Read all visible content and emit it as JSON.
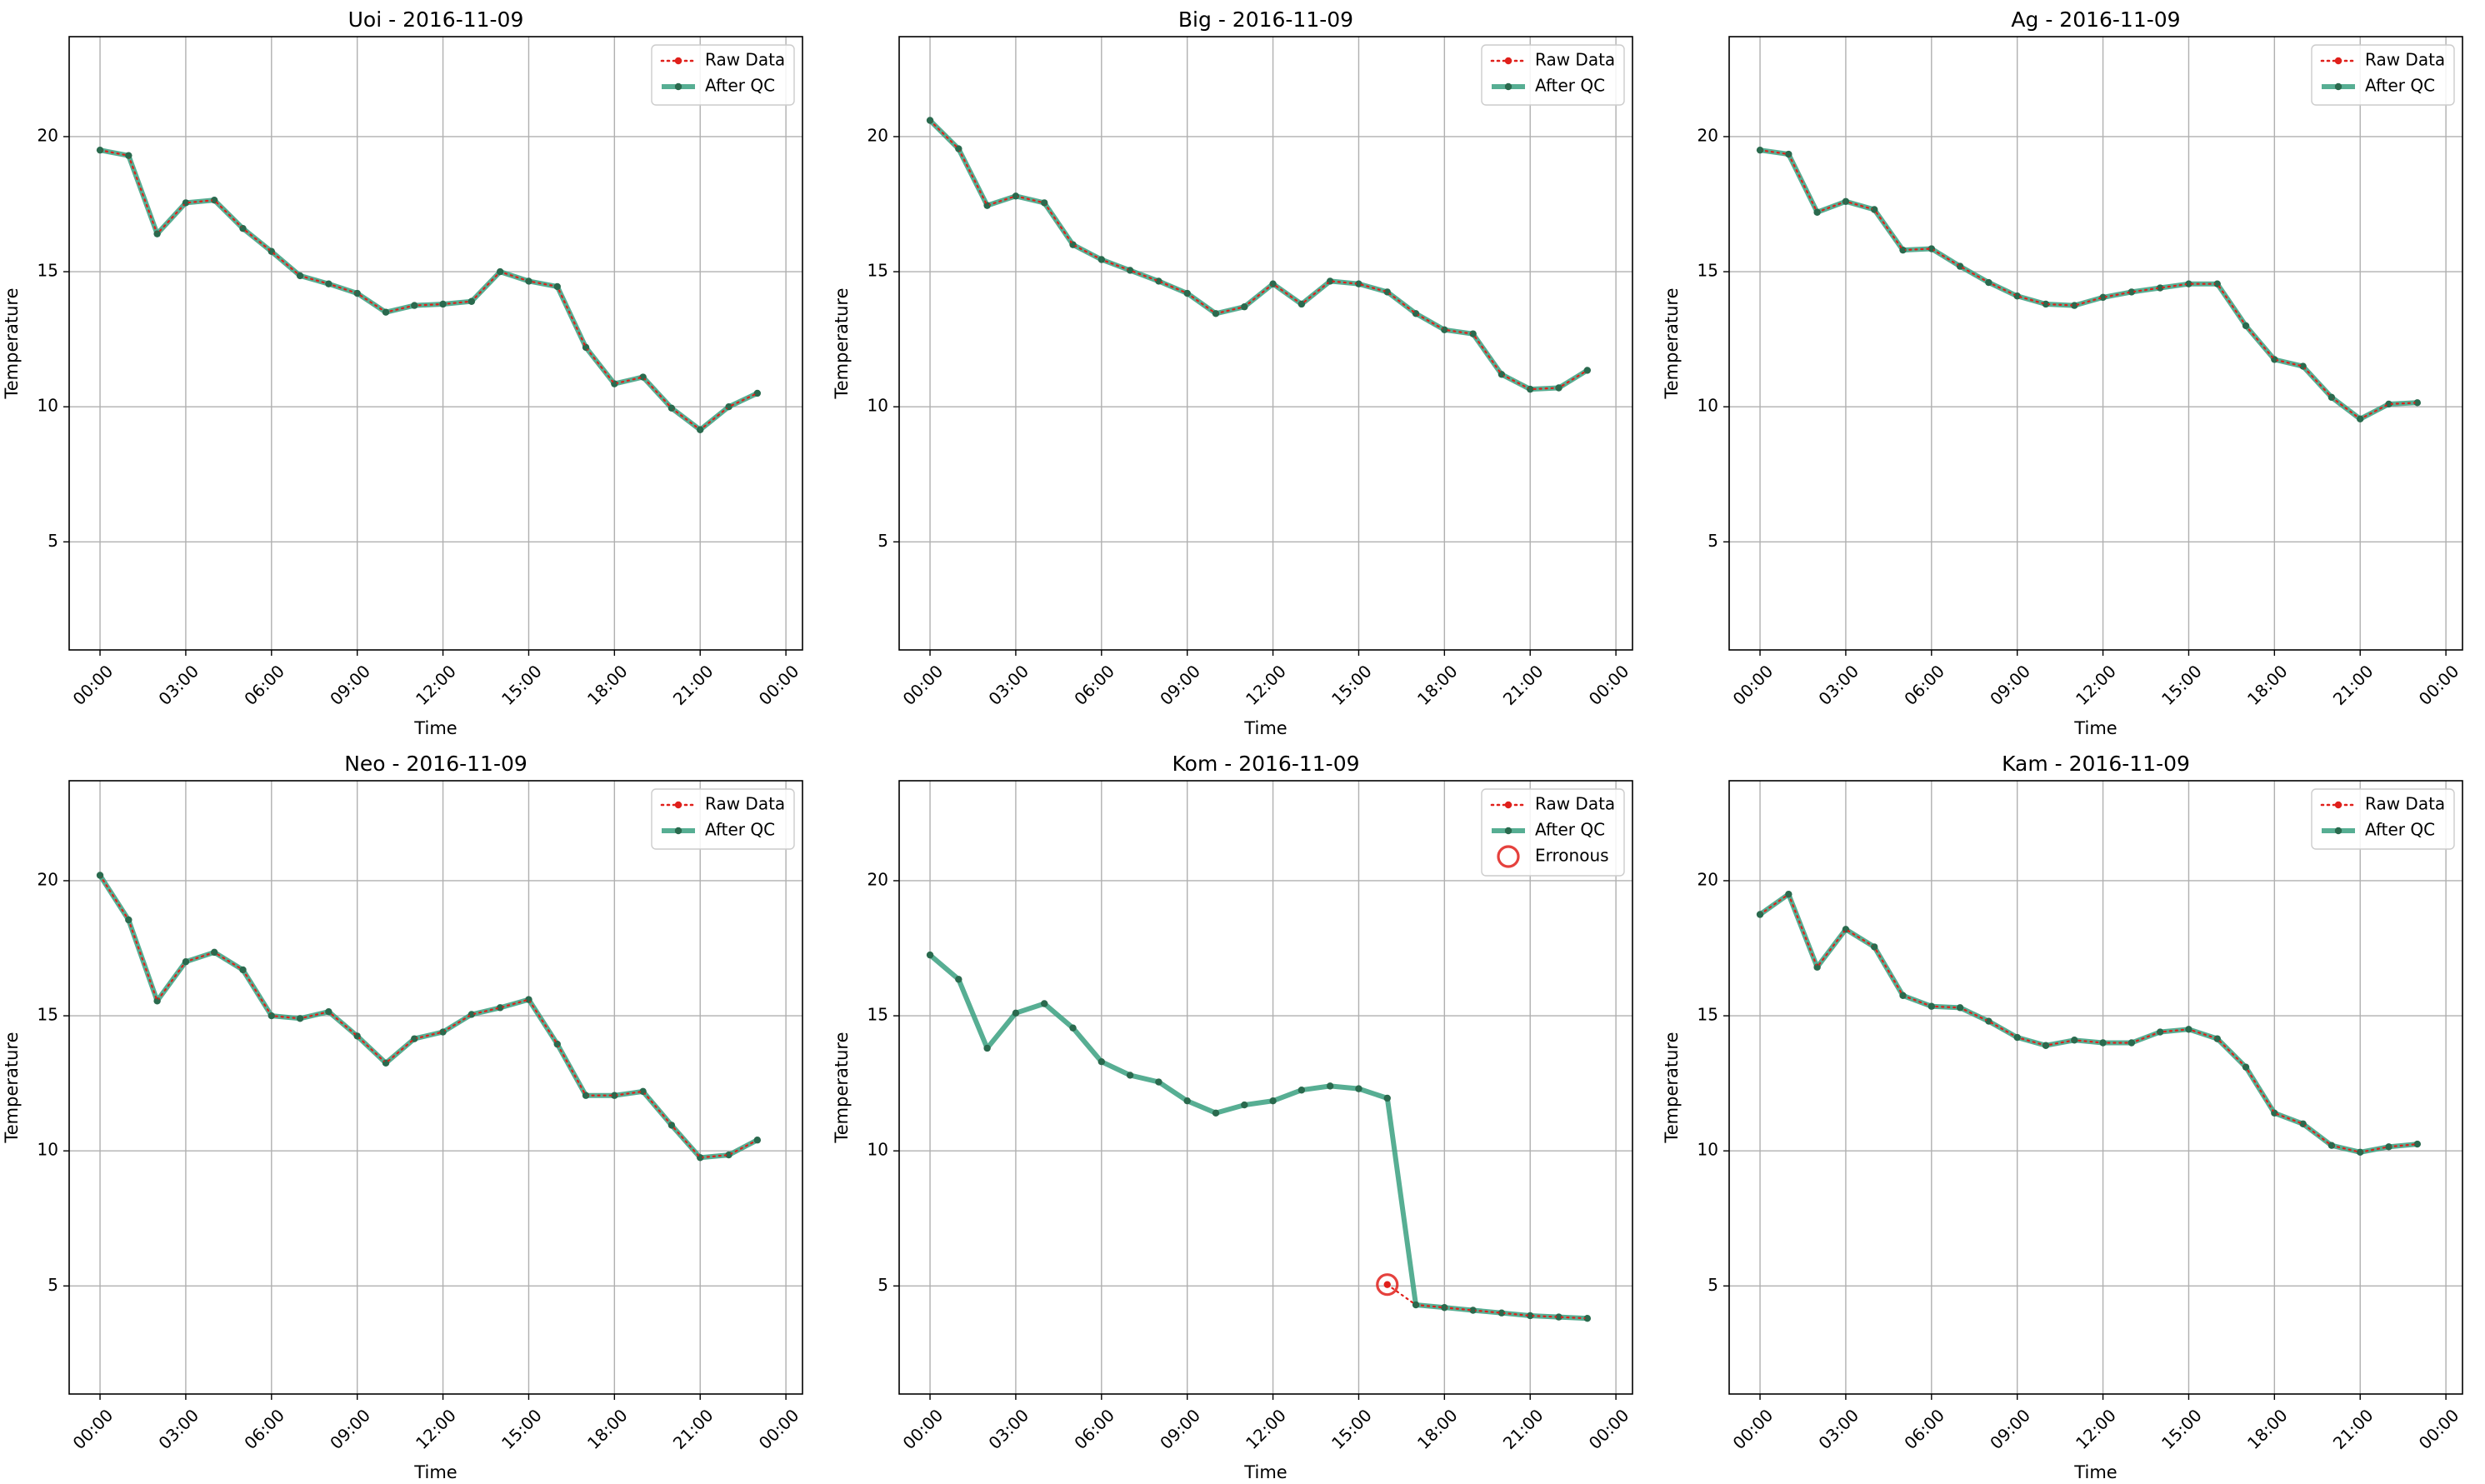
{
  "figure": {
    "legend_labels": {
      "raw": "Raw Data",
      "qc": "After QC",
      "err": "Erronous"
    },
    "colors": {
      "raw": "#e0201b",
      "qc": "#3aa080",
      "qc_marker": "#2a6a4e",
      "grid": "#b0b0b0"
    }
  },
  "chart_data": [
    {
      "type": "line",
      "title": "Uoi - 2016-11-09",
      "xlabel": "Time",
      "ylabel": "Temperature",
      "x_hours": [
        0,
        1,
        2,
        3,
        4,
        5,
        6,
        7,
        8,
        9,
        10,
        11,
        12,
        13,
        14,
        15,
        16,
        17,
        18,
        19,
        20,
        21,
        22,
        23
      ],
      "x_ticks": [
        "00:00",
        "03:00",
        "06:00",
        "09:00",
        "12:00",
        "15:00",
        "18:00",
        "21:00",
        "00:00"
      ],
      "y_ticks": [
        5,
        10,
        15,
        20
      ],
      "ylim": [
        1,
        23.7
      ],
      "grid": true,
      "legend": "top-right",
      "series": [
        {
          "name": "Raw Data",
          "values": [
            19.5,
            19.3,
            16.4,
            17.55,
            17.65,
            16.6,
            15.75,
            14.85,
            14.55,
            14.2,
            13.5,
            13.75,
            13.8,
            13.9,
            15.0,
            14.65,
            14.45,
            12.2,
            10.85,
            11.1,
            9.95,
            9.15,
            10.0,
            10.5
          ]
        },
        {
          "name": "After QC",
          "values": [
            19.5,
            19.3,
            16.4,
            17.55,
            17.65,
            16.6,
            15.75,
            14.85,
            14.55,
            14.2,
            13.5,
            13.75,
            13.8,
            13.9,
            15.0,
            14.65,
            14.45,
            12.2,
            10.85,
            11.1,
            9.95,
            9.15,
            10.0,
            10.5
          ]
        }
      ]
    },
    {
      "type": "line",
      "title": "Big - 2016-11-09",
      "xlabel": "Time",
      "ylabel": "Temperature",
      "x_hours": [
        0,
        1,
        2,
        3,
        4,
        5,
        6,
        7,
        8,
        9,
        10,
        11,
        12,
        13,
        14,
        15,
        16,
        17,
        18,
        19,
        20,
        21,
        22,
        23
      ],
      "x_ticks": [
        "00:00",
        "03:00",
        "06:00",
        "09:00",
        "12:00",
        "15:00",
        "18:00",
        "21:00",
        "00:00"
      ],
      "y_ticks": [
        5,
        10,
        15,
        20
      ],
      "ylim": [
        1,
        23.7
      ],
      "grid": true,
      "legend": "top-right",
      "series": [
        {
          "name": "Raw Data",
          "values": [
            20.6,
            19.55,
            17.45,
            17.8,
            17.55,
            16.0,
            15.45,
            15.05,
            14.65,
            14.2,
            13.45,
            13.7,
            14.55,
            13.8,
            14.65,
            14.55,
            14.25,
            13.45,
            12.85,
            12.7,
            11.2,
            10.65,
            10.7,
            11.35
          ]
        },
        {
          "name": "After QC",
          "values": [
            20.6,
            19.55,
            17.45,
            17.8,
            17.55,
            16.0,
            15.45,
            15.05,
            14.65,
            14.2,
            13.45,
            13.7,
            14.55,
            13.8,
            14.65,
            14.55,
            14.25,
            13.45,
            12.85,
            12.7,
            11.2,
            10.65,
            10.7,
            11.35
          ]
        }
      ]
    },
    {
      "type": "line",
      "title": "Ag - 2016-11-09",
      "xlabel": "Time",
      "ylabel": "Temperature",
      "x_hours": [
        0,
        1,
        2,
        3,
        4,
        5,
        6,
        7,
        8,
        9,
        10,
        11,
        12,
        13,
        14,
        15,
        16,
        17,
        18,
        19,
        20,
        21,
        22,
        23
      ],
      "x_ticks": [
        "00:00",
        "03:00",
        "06:00",
        "09:00",
        "12:00",
        "15:00",
        "18:00",
        "21:00",
        "00:00"
      ],
      "y_ticks": [
        5,
        10,
        15,
        20
      ],
      "ylim": [
        1,
        23.7
      ],
      "grid": true,
      "legend": "top-right",
      "series": [
        {
          "name": "Raw Data",
          "values": [
            19.5,
            19.35,
            17.2,
            17.6,
            17.3,
            15.8,
            15.85,
            15.2,
            14.6,
            14.1,
            13.8,
            13.75,
            14.05,
            14.25,
            14.4,
            14.55,
            14.55,
            13.0,
            11.75,
            11.5,
            10.35,
            9.55,
            10.1,
            10.15
          ]
        },
        {
          "name": "After QC",
          "values": [
            19.5,
            19.35,
            17.2,
            17.6,
            17.3,
            15.8,
            15.85,
            15.2,
            14.6,
            14.1,
            13.8,
            13.75,
            14.05,
            14.25,
            14.4,
            14.55,
            14.55,
            13.0,
            11.75,
            11.5,
            10.35,
            9.55,
            10.1,
            10.15
          ]
        }
      ]
    },
    {
      "type": "line",
      "title": "Neo - 2016-11-09",
      "xlabel": "Time",
      "ylabel": "Temperature",
      "x_hours": [
        0,
        1,
        2,
        3,
        4,
        5,
        6,
        7,
        8,
        9,
        10,
        11,
        12,
        13,
        14,
        15,
        16,
        17,
        18,
        19,
        20,
        21,
        22,
        23
      ],
      "x_ticks": [
        "00:00",
        "03:00",
        "06:00",
        "09:00",
        "12:00",
        "15:00",
        "18:00",
        "21:00",
        "00:00"
      ],
      "y_ticks": [
        5,
        10,
        15,
        20
      ],
      "ylim": [
        1,
        23.7
      ],
      "grid": true,
      "legend": "top-right",
      "series": [
        {
          "name": "Raw Data",
          "values": [
            20.2,
            18.55,
            15.55,
            17.0,
            17.35,
            16.7,
            15.0,
            14.9,
            15.15,
            14.25,
            13.25,
            14.15,
            14.4,
            15.05,
            15.3,
            15.6,
            13.95,
            12.05,
            12.05,
            12.2,
            10.95,
            9.75,
            9.85,
            10.4
          ]
        },
        {
          "name": "After QC",
          "values": [
            20.2,
            18.55,
            15.55,
            17.0,
            17.35,
            16.7,
            15.0,
            14.9,
            15.15,
            14.25,
            13.25,
            14.15,
            14.4,
            15.05,
            15.3,
            15.6,
            13.95,
            12.05,
            12.05,
            12.2,
            10.95,
            9.75,
            9.85,
            10.4
          ]
        }
      ]
    },
    {
      "type": "line",
      "title": "Kom - 2016-11-09",
      "xlabel": "Time",
      "ylabel": "Temperature",
      "x_hours": [
        0,
        1,
        2,
        3,
        4,
        5,
        6,
        7,
        8,
        9,
        10,
        11,
        12,
        13,
        14,
        15,
        16,
        17,
        18,
        19,
        20,
        21,
        22,
        23
      ],
      "x_ticks": [
        "00:00",
        "03:00",
        "06:00",
        "09:00",
        "12:00",
        "15:00",
        "18:00",
        "21:00",
        "00:00"
      ],
      "y_ticks": [
        5,
        10,
        15,
        20
      ],
      "ylim": [
        1,
        23.7
      ],
      "grid": true,
      "legend": "top-right",
      "series": [
        {
          "name": "Raw Data",
          "values": [
            null,
            null,
            null,
            null,
            null,
            null,
            null,
            null,
            null,
            null,
            null,
            null,
            null,
            null,
            null,
            null,
            5.05,
            4.3,
            4.2,
            4.1,
            4.0,
            3.9,
            3.85,
            3.8
          ]
        },
        {
          "name": "After QC",
          "values": [
            17.25,
            16.35,
            13.8,
            15.1,
            15.45,
            14.55,
            13.3,
            12.8,
            12.55,
            11.85,
            11.4,
            11.7,
            11.85,
            12.25,
            12.4,
            12.3,
            11.95,
            4.3,
            4.2,
            4.1,
            4.0,
            3.9,
            3.85,
            3.8
          ]
        }
      ],
      "erroneous": [
        {
          "x_hour": 16,
          "value": 5.05
        }
      ]
    },
    {
      "type": "line",
      "title": "Kam - 2016-11-09",
      "xlabel": "Time",
      "ylabel": "Temperature",
      "x_hours": [
        0,
        1,
        2,
        3,
        4,
        5,
        6,
        7,
        8,
        9,
        10,
        11,
        12,
        13,
        14,
        15,
        16,
        17,
        18,
        19,
        20,
        21,
        22,
        23
      ],
      "x_ticks": [
        "00:00",
        "03:00",
        "06:00",
        "09:00",
        "12:00",
        "15:00",
        "18:00",
        "21:00",
        "00:00"
      ],
      "y_ticks": [
        5,
        10,
        15,
        20
      ],
      "ylim": [
        1,
        23.7
      ],
      "grid": true,
      "legend": "top-right",
      "series": [
        {
          "name": "Raw Data",
          "values": [
            18.75,
            19.5,
            16.8,
            18.2,
            17.55,
            15.75,
            15.35,
            15.3,
            14.8,
            14.2,
            13.9,
            14.1,
            14.0,
            14.0,
            14.4,
            14.5,
            14.15,
            13.1,
            11.4,
            11.0,
            10.2,
            9.95,
            10.15,
            10.25
          ]
        },
        {
          "name": "After QC",
          "values": [
            18.75,
            19.5,
            16.8,
            18.2,
            17.55,
            15.75,
            15.35,
            15.3,
            14.8,
            14.2,
            13.9,
            14.1,
            14.0,
            14.0,
            14.4,
            14.5,
            14.15,
            13.1,
            11.4,
            11.0,
            10.2,
            9.95,
            10.15,
            10.25
          ]
        }
      ]
    }
  ]
}
